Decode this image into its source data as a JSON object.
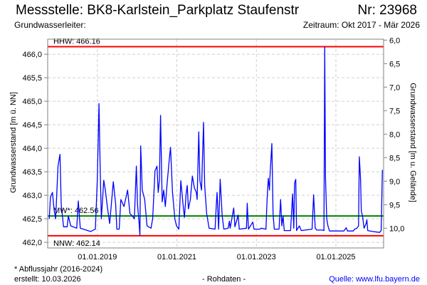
{
  "header": {
    "title": "Messstelle: BK8-Karlstein_Parkplatz Staufenstr",
    "nr": "Nr: 23968",
    "aquifer": "Grundwasserleiter:",
    "period": "Zeitraum: Okt 2017 - Mär 2026"
  },
  "footer": {
    "note": "* Abflussjahr (2016-2024)",
    "created": "erstellt:  10.03.2026",
    "raw": "- Rohdaten -",
    "source": "Quelle: www.lfu.bayern.de"
  },
  "colors": {
    "series": "#0000ff",
    "hhw": "#ff0000",
    "nnw": "#ff0000",
    "mw": "#008000",
    "grid": "#d0d0d0",
    "axis": "#808080"
  },
  "chart_data": {
    "type": "line",
    "ylabel": "Grundwasserstand [m ü. NN]",
    "y2label": "Grundwasserstand [m u. Gelände]",
    "xlim": [
      2017.75,
      2026.2
    ],
    "ylim": [
      461.88,
      466.32
    ],
    "ground_level": 472.3,
    "yticks": [
      462.0,
      462.5,
      463.0,
      463.5,
      464.0,
      464.5,
      465.0,
      465.5,
      466.0
    ],
    "ytick_labels": [
      "462,0",
      "462,5",
      "463,0",
      "463,5",
      "464,0",
      "464,5",
      "465,0",
      "465,5",
      "466,0"
    ],
    "y2ticks": [
      6.0,
      6.5,
      7.0,
      7.5,
      8.0,
      8.5,
      9.0,
      9.5,
      10.0
    ],
    "y2tick_labels": [
      "6,0",
      "6,5",
      "7,0",
      "7,5",
      "8,0",
      "8,5",
      "9,0",
      "9,5",
      "10,0"
    ],
    "xticks": [
      2019,
      2021,
      2023,
      2025
    ],
    "xtick_labels": [
      "01.01.2019",
      "01.01.2021",
      "01.01.2023",
      "01.01.2025"
    ],
    "grid": true,
    "reference_lines": [
      {
        "name": "HHW",
        "label": "HHW: 466.16",
        "value": 466.16,
        "color": "#ff0000"
      },
      {
        "name": "MW",
        "label": "MW*: 462.56",
        "value": 462.56,
        "color": "#008000"
      },
      {
        "name": "NNW",
        "label": "NNW: 462.14",
        "value": 462.14,
        "color": "#ff0000"
      }
    ],
    "series": [
      {
        "name": "Grundwasserstand",
        "points": [
          [
            2017.79,
            462.5
          ],
          [
            2017.82,
            462.96
          ],
          [
            2017.87,
            463.06
          ],
          [
            2017.91,
            462.71
          ],
          [
            2017.95,
            462.5
          ],
          [
            2018.01,
            463.62
          ],
          [
            2018.06,
            463.87
          ],
          [
            2018.09,
            462.81
          ],
          [
            2018.15,
            462.33
          ],
          [
            2018.24,
            462.33
          ],
          [
            2018.27,
            462.56
          ],
          [
            2018.33,
            462.35
          ],
          [
            2018.48,
            462.3
          ],
          [
            2018.52,
            462.88
          ],
          [
            2018.57,
            462.3
          ],
          [
            2018.83,
            462.23
          ],
          [
            2018.95,
            462.28
          ],
          [
            2019.0,
            463.36
          ],
          [
            2019.04,
            464.95
          ],
          [
            2019.07,
            463.62
          ],
          [
            2019.1,
            462.5
          ],
          [
            2019.16,
            463.32
          ],
          [
            2019.2,
            463.11
          ],
          [
            2019.25,
            462.76
          ],
          [
            2019.31,
            462.4
          ],
          [
            2019.4,
            463.29
          ],
          [
            2019.46,
            462.81
          ],
          [
            2019.49,
            462.28
          ],
          [
            2019.55,
            462.28
          ],
          [
            2019.59,
            462.91
          ],
          [
            2019.67,
            462.76
          ],
          [
            2019.76,
            463.11
          ],
          [
            2019.82,
            462.61
          ],
          [
            2019.88,
            462.56
          ],
          [
            2019.93,
            462.5
          ],
          [
            2019.98,
            463.62
          ],
          [
            2020.01,
            462.81
          ],
          [
            2020.05,
            462.4
          ],
          [
            2020.07,
            462.15
          ],
          [
            2020.09,
            464.05
          ],
          [
            2020.13,
            463.11
          ],
          [
            2020.19,
            462.91
          ],
          [
            2020.25,
            462.35
          ],
          [
            2020.35,
            462.3
          ],
          [
            2020.39,
            462.5
          ],
          [
            2020.45,
            463.52
          ],
          [
            2020.5,
            463.62
          ],
          [
            2020.53,
            463.06
          ],
          [
            2020.56,
            463.32
          ],
          [
            2020.59,
            464.7
          ],
          [
            2020.63,
            462.86
          ],
          [
            2020.67,
            463.11
          ],
          [
            2020.71,
            462.76
          ],
          [
            2020.75,
            463.21
          ],
          [
            2020.81,
            463.77
          ],
          [
            2020.84,
            464.02
          ],
          [
            2020.89,
            463.06
          ],
          [
            2020.95,
            462.5
          ],
          [
            2020.99,
            462.35
          ],
          [
            2021.05,
            462.28
          ],
          [
            2021.1,
            463.31
          ],
          [
            2021.16,
            462.76
          ],
          [
            2021.19,
            462.53
          ],
          [
            2021.23,
            463.01
          ],
          [
            2021.26,
            463.21
          ],
          [
            2021.29,
            462.71
          ],
          [
            2021.34,
            462.91
          ],
          [
            2021.39,
            463.41
          ],
          [
            2021.44,
            463.16
          ],
          [
            2021.49,
            463.06
          ],
          [
            2021.51,
            462.91
          ],
          [
            2021.55,
            464.35
          ],
          [
            2021.58,
            463.31
          ],
          [
            2021.62,
            463.11
          ],
          [
            2021.67,
            464.55
          ],
          [
            2021.7,
            463.21
          ],
          [
            2021.75,
            462.61
          ],
          [
            2021.81,
            462.3
          ],
          [
            2021.96,
            462.28
          ],
          [
            2021.99,
            462.76
          ],
          [
            2022.01,
            463.06
          ],
          [
            2022.05,
            462.28
          ],
          [
            2022.09,
            463.34
          ],
          [
            2022.14,
            462.56
          ],
          [
            2022.18,
            462.28
          ],
          [
            2022.29,
            462.3
          ],
          [
            2022.32,
            462.45
          ],
          [
            2022.34,
            462.3
          ],
          [
            2022.43,
            462.73
          ],
          [
            2022.46,
            462.33
          ],
          [
            2022.54,
            462.58
          ],
          [
            2022.57,
            462.28
          ],
          [
            2022.75,
            462.3
          ],
          [
            2022.77,
            462.83
          ],
          [
            2022.8,
            462.28
          ],
          [
            2022.91,
            462.43
          ],
          [
            2022.94,
            462.28
          ],
          [
            2023.09,
            462.28
          ],
          [
            2023.12,
            462.3
          ],
          [
            2023.24,
            462.28
          ],
          [
            2023.27,
            462.91
          ],
          [
            2023.3,
            463.36
          ],
          [
            2023.33,
            463.11
          ],
          [
            2023.34,
            463.36
          ],
          [
            2023.39,
            464.1
          ],
          [
            2023.42,
            462.61
          ],
          [
            2023.45,
            462.28
          ],
          [
            2023.57,
            462.28
          ],
          [
            2023.61,
            462.91
          ],
          [
            2023.64,
            462.35
          ],
          [
            2023.67,
            462.56
          ],
          [
            2023.7,
            462.25
          ],
          [
            2023.86,
            462.25
          ],
          [
            2023.91,
            463.03
          ],
          [
            2023.94,
            462.3
          ],
          [
            2023.96,
            463.26
          ],
          [
            2023.99,
            463.34
          ],
          [
            2024.01,
            462.25
          ],
          [
            2024.08,
            462.35
          ],
          [
            2024.13,
            462.25
          ],
          [
            2024.4,
            462.28
          ],
          [
            2024.44,
            463.01
          ],
          [
            2024.48,
            462.3
          ],
          [
            2024.52,
            462.26
          ],
          [
            2024.67,
            462.26
          ],
          [
            2024.7,
            462.25
          ],
          [
            2024.72,
            466.15
          ],
          [
            2024.74,
            463.36
          ],
          [
            2024.77,
            462.5
          ],
          [
            2024.8,
            462.35
          ],
          [
            2024.84,
            462.24
          ],
          [
            2025.2,
            462.24
          ],
          [
            2025.26,
            462.31
          ],
          [
            2025.29,
            462.24
          ],
          [
            2025.44,
            462.24
          ],
          [
            2025.47,
            462.28
          ],
          [
            2025.53,
            462.3
          ],
          [
            2025.57,
            462.35
          ],
          [
            2025.59,
            463.82
          ],
          [
            2025.62,
            463.36
          ],
          [
            2025.64,
            462.66
          ],
          [
            2025.67,
            462.56
          ],
          [
            2025.71,
            462.3
          ],
          [
            2025.76,
            462.4
          ],
          [
            2025.78,
            462.48
          ],
          [
            2025.8,
            462.25
          ],
          [
            2025.92,
            462.23
          ],
          [
            2026.1,
            462.21
          ],
          [
            2026.14,
            462.25
          ],
          [
            2026.17,
            463.54
          ]
        ]
      }
    ]
  }
}
